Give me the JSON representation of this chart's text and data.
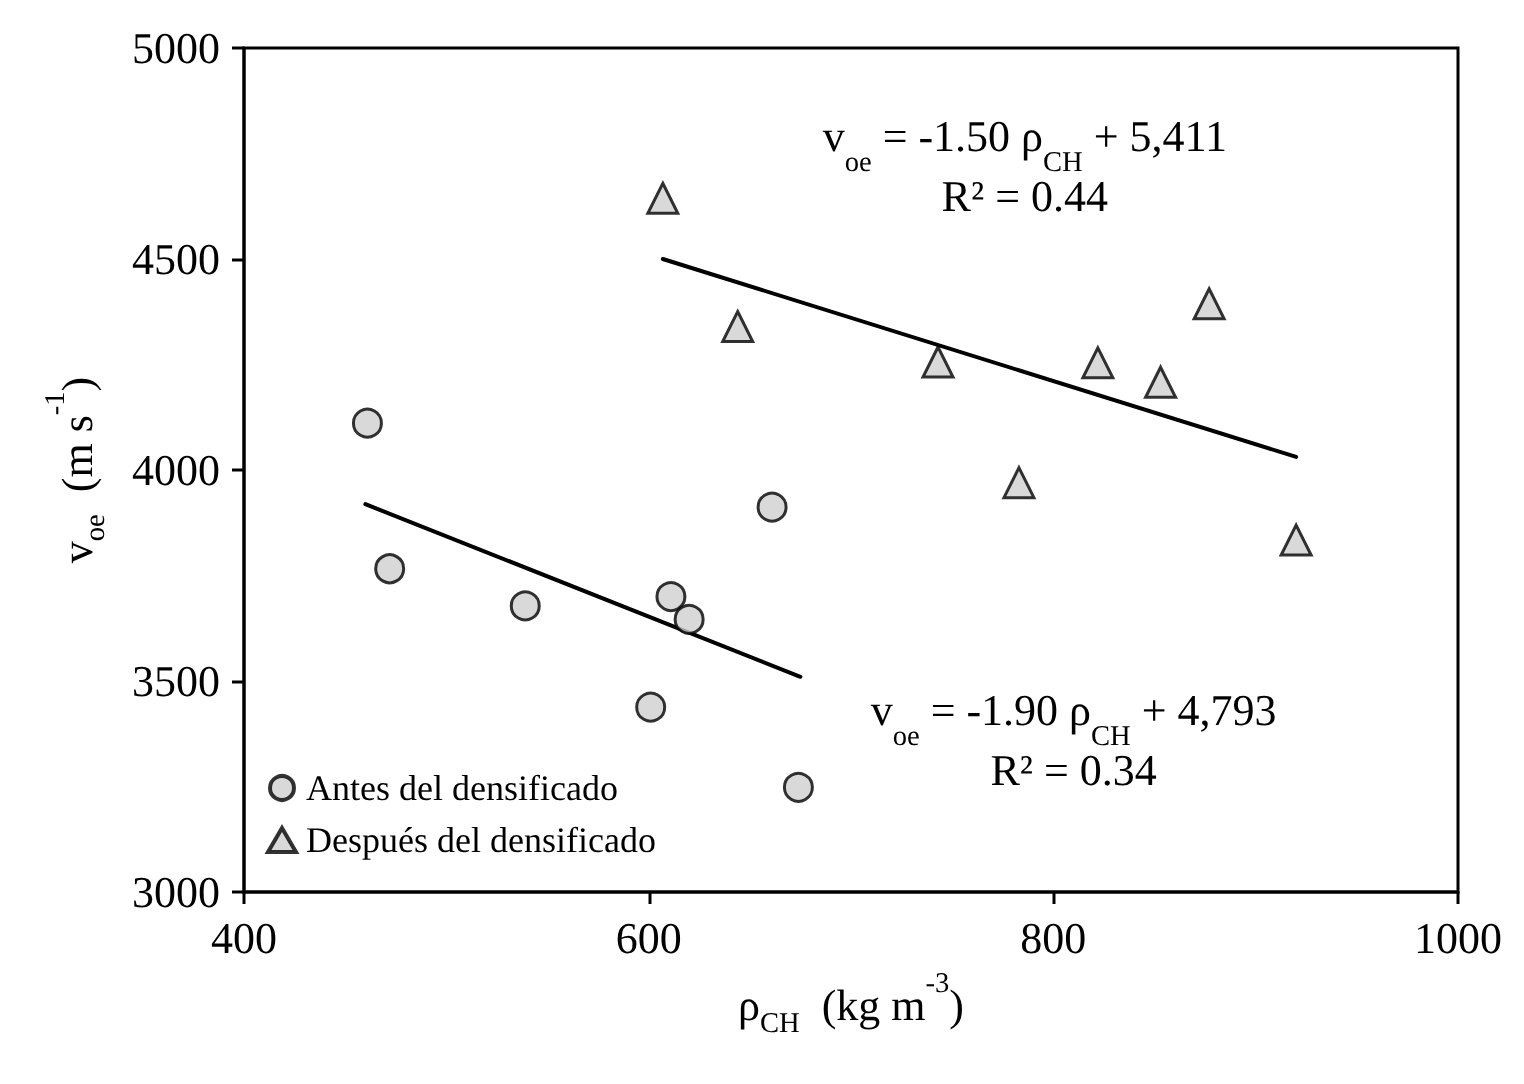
{
  "chart_data": {
    "type": "scatter",
    "xlabel": "ρ$_{CH}$  (kg m$^{-3}$)",
    "ylabel": "v$_{oe}$  (m s$^{-1}$)",
    "xlim": [
      400,
      1000
    ],
    "xticks": [
      400,
      600,
      800,
      1000
    ],
    "ylim": [
      3000,
      5000
    ],
    "yticks": [
      3000,
      3500,
      4000,
      4500,
      5000
    ],
    "grid": false,
    "legend": "bottom left",
    "series": [
      {
        "name": "Antes del densificado",
        "color": "#d0d0d0",
        "marker": "circle",
        "x": [
          461,
          472,
          539,
          611,
          620,
          601,
          674,
          661
        ],
        "values": [
          4111,
          3766,
          3678,
          3700,
          3646,
          3438,
          3248,
          3912
        ]
      },
      {
        "name": "Después del densificado",
        "color": "#d0d0d0",
        "marker": "triangle",
        "x": [
          607,
          644,
          743,
          783,
          822,
          853,
          877,
          920
        ],
        "values": [
          4644,
          4340,
          4256,
          3970,
          4254,
          4208,
          4394,
          3834
        ]
      },
      {
        "type": "line",
        "color": "#000000",
        "marker": "none",
        "x": [
          460,
          675
        ],
        "values": [
          3919,
          3510
        ]
      },
      {
        "type": "line",
        "color": "#000000",
        "marker": "none",
        "x": [
          607,
          920
        ],
        "values": [
          4500,
          4031
        ]
      }
    ],
    "annotations": [
      "v$_{oe}$ = -1.50 ρ$_{CH}$ + 5,411\nR² = 0.44",
      "v$_{oe}$ = -1.90 ρ$_{CH}$ + 4,793\nR² = 0.34"
    ]
  }
}
